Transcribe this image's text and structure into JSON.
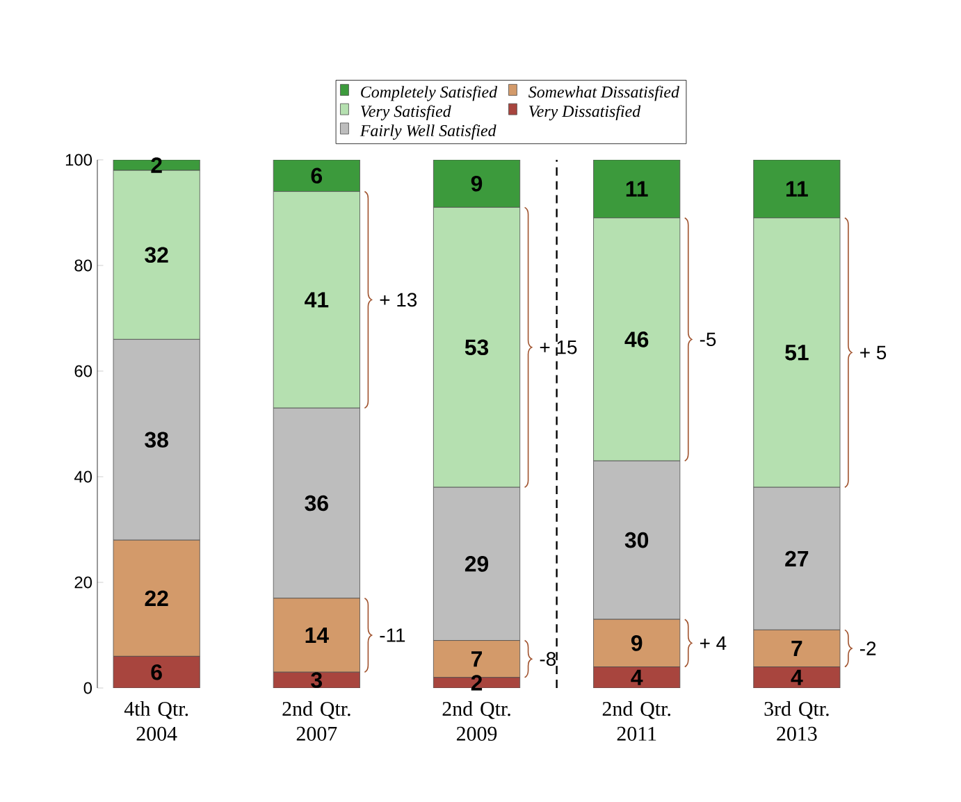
{
  "chart_data": {
    "type": "bar",
    "stacked": true,
    "categories": [
      "4th Qtr. 2004",
      "2nd Qtr. 2007",
      "2nd Qtr. 2009",
      "2nd Qtr. 2011",
      "3rd Qtr. 2013"
    ],
    "series": [
      {
        "name": "Very Dissatisfied",
        "color": "#a8453e",
        "values": [
          6,
          3,
          2,
          4,
          4
        ]
      },
      {
        "name": "Somewhat Dissatisfied",
        "color": "#d39a6a",
        "values": [
          22,
          14,
          7,
          9,
          7
        ]
      },
      {
        "name": "Fairly Well Satisfied",
        "color": "#bdbdbd",
        "values": [
          38,
          36,
          29,
          30,
          27
        ]
      },
      {
        "name": "Very Satisfied",
        "color": "#b5e0b0",
        "values": [
          32,
          41,
          53,
          46,
          51
        ]
      },
      {
        "name": "Completely Satisfied",
        "color": "#3c9a3c",
        "values": [
          2,
          6,
          9,
          11,
          11
        ]
      }
    ],
    "ylim": [
      0,
      100
    ],
    "yticks": [
      0,
      20,
      40,
      60,
      80,
      100
    ],
    "data_labels": true,
    "legend": "top",
    "grid": false,
    "annotations": [
      "+ 13",
      "-11",
      "+ 15",
      "-8",
      "-5",
      "+ 4",
      "+ 5",
      "-2"
    ]
  }
}
